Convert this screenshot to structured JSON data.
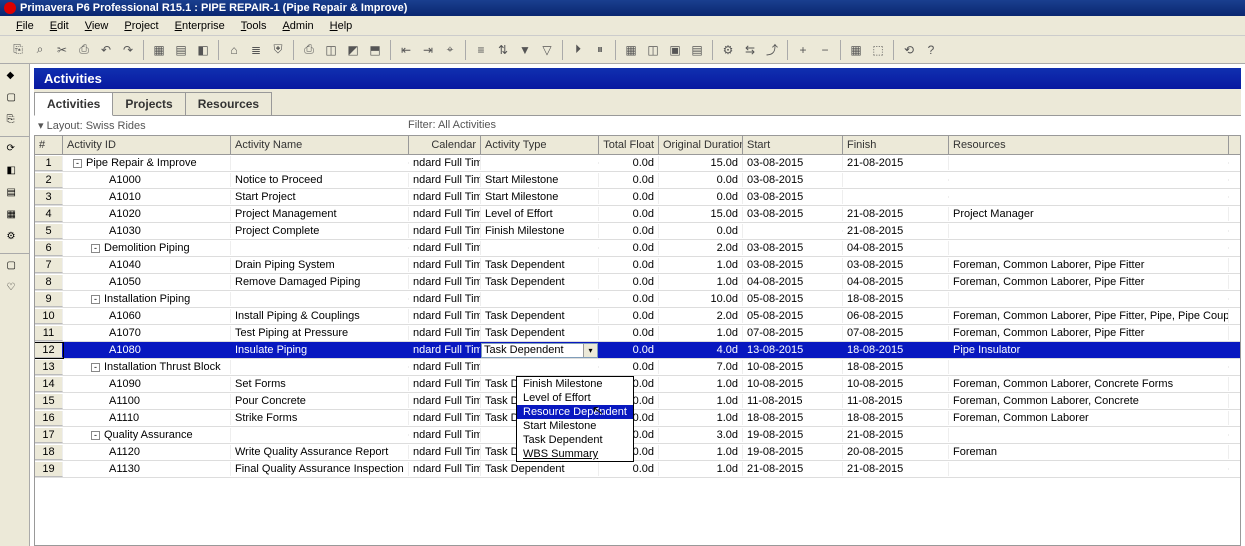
{
  "window": {
    "title": "Primavera P6 Professional R15.1 : PIPE REPAIR-1 (Pipe Repair & Improve)"
  },
  "menu": [
    "File",
    "Edit",
    "View",
    "Project",
    "Enterprise",
    "Tools",
    "Admin",
    "Help"
  ],
  "section_title": "Activities",
  "tabs": [
    {
      "label": "Activities",
      "active": true
    },
    {
      "label": "Projects",
      "active": false
    },
    {
      "label": "Resources",
      "active": false
    }
  ],
  "layout_label": "Layout: Swiss Rides",
  "filter_label": "Filter: All Activities",
  "columns": [
    {
      "key": "rownum",
      "label": "#",
      "w": "c-rownum"
    },
    {
      "key": "id",
      "label": "Activity ID",
      "w": "c-id"
    },
    {
      "key": "name",
      "label": "Activity Name",
      "w": "c-name"
    },
    {
      "key": "cal",
      "label": "Calendar",
      "w": "c-cal"
    },
    {
      "key": "type",
      "label": "Activity Type",
      "w": "c-type"
    },
    {
      "key": "float",
      "label": "Total Float",
      "w": "c-float"
    },
    {
      "key": "dur",
      "label": "Original Duration",
      "w": "c-dur"
    },
    {
      "key": "start",
      "label": "Start",
      "w": "c-start"
    },
    {
      "key": "finish",
      "label": "Finish",
      "w": "c-finish"
    },
    {
      "key": "res",
      "label": "Resources",
      "w": "c-res"
    }
  ],
  "rows": [
    {
      "n": 1,
      "indent": 0,
      "summary": true,
      "exp": "-",
      "id": "Pipe Repair & Improve",
      "name": "",
      "cal": "ndard Full Time",
      "type": "",
      "float": "0.0d",
      "dur": "15.0d",
      "start": "03-08-2015",
      "finish": "21-08-2015",
      "res": ""
    },
    {
      "n": 2,
      "indent": 2,
      "id": "A1000",
      "name": "Notice to Proceed",
      "cal": "ndard Full Time",
      "type": "Start Milestone",
      "float": "0.0d",
      "dur": "0.0d",
      "start": "03-08-2015",
      "finish": "",
      "res": ""
    },
    {
      "n": 3,
      "indent": 2,
      "id": "A1010",
      "name": "Start Project",
      "cal": "ndard Full Time",
      "type": "Start Milestone",
      "float": "0.0d",
      "dur": "0.0d",
      "start": "03-08-2015",
      "finish": "",
      "res": ""
    },
    {
      "n": 4,
      "indent": 2,
      "id": "A1020",
      "name": "Project Management",
      "cal": "ndard Full Time",
      "type": "Level of Effort",
      "float": "0.0d",
      "dur": "15.0d",
      "start": "03-08-2015",
      "finish": "21-08-2015",
      "res": "Project Manager"
    },
    {
      "n": 5,
      "indent": 2,
      "id": "A1030",
      "name": "Project Complete",
      "cal": "ndard Full Time",
      "type": "Finish Milestone",
      "float": "0.0d",
      "dur": "0.0d",
      "start": "",
      "finish": "21-08-2015",
      "res": ""
    },
    {
      "n": 6,
      "indent": 1,
      "summary": true,
      "exp": "-",
      "id": "Demolition Piping",
      "name": "",
      "cal": "ndard Full Time",
      "type": "",
      "float": "0.0d",
      "dur": "2.0d",
      "start": "03-08-2015",
      "finish": "04-08-2015",
      "res": ""
    },
    {
      "n": 7,
      "indent": 2,
      "id": "A1040",
      "name": "Drain Piping System",
      "cal": "ndard Full Time",
      "type": "Task Dependent",
      "float": "0.0d",
      "dur": "1.0d",
      "start": "03-08-2015",
      "finish": "03-08-2015",
      "res": "Foreman, Common Laborer, Pipe Fitter"
    },
    {
      "n": 8,
      "indent": 2,
      "id": "A1050",
      "name": "Remove Damaged Piping",
      "cal": "ndard Full Time",
      "type": "Task Dependent",
      "float": "0.0d",
      "dur": "1.0d",
      "start": "04-08-2015",
      "finish": "04-08-2015",
      "res": "Foreman, Common Laborer, Pipe Fitter"
    },
    {
      "n": 9,
      "indent": 1,
      "summary": true,
      "exp": "-",
      "id": "Installation Piping",
      "name": "",
      "cal": "ndard Full Time",
      "type": "",
      "float": "0.0d",
      "dur": "10.0d",
      "start": "05-08-2015",
      "finish": "18-08-2015",
      "res": ""
    },
    {
      "n": 10,
      "indent": 2,
      "id": "A1060",
      "name": "Install Piping & Couplings",
      "cal": "ndard Full Time",
      "type": "Task Dependent",
      "float": "0.0d",
      "dur": "2.0d",
      "start": "05-08-2015",
      "finish": "06-08-2015",
      "res": "Foreman, Common Laborer, Pipe Fitter, Pipe, Pipe Coupling"
    },
    {
      "n": 11,
      "indent": 2,
      "id": "A1070",
      "name": "Test Piping at Pressure",
      "cal": "ndard Full Time",
      "type": "Task Dependent",
      "float": "0.0d",
      "dur": "1.0d",
      "start": "07-08-2015",
      "finish": "07-08-2015",
      "res": "Foreman, Common Laborer, Pipe Fitter"
    },
    {
      "n": 12,
      "indent": 2,
      "selected": true,
      "id": "A1080",
      "name": "Insulate Piping",
      "cal": "ndard Full Time",
      "type": "Task Dependent",
      "float": "0.0d",
      "dur": "4.0d",
      "start": "13-08-2015",
      "finish": "18-08-2015",
      "res": "Pipe Insulator"
    },
    {
      "n": 13,
      "indent": 1,
      "summary": true,
      "exp": "-",
      "id": "Installation Thrust Block",
      "name": "",
      "cal": "ndard Full Time",
      "type": "",
      "float": "0.0d",
      "dur": "7.0d",
      "start": "10-08-2015",
      "finish": "18-08-2015",
      "res": ""
    },
    {
      "n": 14,
      "indent": 2,
      "id": "A1090",
      "name": "Set Forms",
      "cal": "ndard Full Time",
      "type": "Task Dependent",
      "float": "0.0d",
      "dur": "1.0d",
      "start": "10-08-2015",
      "finish": "10-08-2015",
      "res": "Foreman, Common Laborer, Concrete Forms"
    },
    {
      "n": 15,
      "indent": 2,
      "id": "A1100",
      "name": "Pour Concrete",
      "cal": "ndard Full Time",
      "type": "Task Dependent",
      "float": "0.0d",
      "dur": "1.0d",
      "start": "11-08-2015",
      "finish": "11-08-2015",
      "res": "Foreman, Common Laborer, Concrete"
    },
    {
      "n": 16,
      "indent": 2,
      "id": "A1110",
      "name": "Strike Forms",
      "cal": "ndard Full Time",
      "type": "Task Dependent",
      "float": "0.0d",
      "dur": "1.0d",
      "start": "18-08-2015",
      "finish": "18-08-2015",
      "res": "Foreman, Common Laborer"
    },
    {
      "n": 17,
      "indent": 1,
      "summary": true,
      "exp": "-",
      "id": "Quality Assurance",
      "name": "",
      "cal": "ndard Full Time",
      "type": "",
      "float": "0.0d",
      "dur": "3.0d",
      "start": "19-08-2015",
      "finish": "21-08-2015",
      "res": ""
    },
    {
      "n": 18,
      "indent": 2,
      "id": "A1120",
      "name": "Write Quality Assurance Report",
      "cal": "ndard Full Time",
      "type": "Task Dependent",
      "float": "0.0d",
      "dur": "1.0d",
      "start": "19-08-2015",
      "finish": "20-08-2015",
      "res": "Foreman"
    },
    {
      "n": 19,
      "indent": 2,
      "id": "A1130",
      "name": "Final Quality Assurance Inspection",
      "cal": "ndard Full Time",
      "type": "Task Dependent",
      "float": "0.0d",
      "dur": "1.0d",
      "start": "21-08-2015",
      "finish": "21-08-2015",
      "res": ""
    }
  ],
  "dropdown_options": [
    {
      "label": "Finish Milestone",
      "hl": false
    },
    {
      "label": "Level of Effort",
      "hl": false
    },
    {
      "label": "Resource Dependent",
      "hl": true
    },
    {
      "label": "Start Milestone",
      "hl": false
    },
    {
      "label": "Task Dependent",
      "hl": false
    },
    {
      "label": "WBS Summary",
      "hl": false,
      "wbs": true
    }
  ],
  "toolbar_icons": [
    "⎘",
    "⌕",
    "✂",
    "⎙",
    "↶",
    "↷",
    "|",
    "▦",
    "▤",
    "◧",
    "|",
    "⌂",
    "≣",
    "⛨",
    "|",
    "⎙",
    "◫",
    "◩",
    "⬒",
    "|",
    "⇤",
    "⇥",
    "⌖",
    "|",
    "≡",
    "⇅",
    "▼",
    "▽",
    "|",
    "⏵",
    "⏸",
    "|",
    "▦",
    "◫",
    "▣",
    "▤",
    "|",
    "⚙",
    "⇆",
    "⤴",
    "|",
    "+",
    "−",
    "|",
    "▦",
    "⬚",
    "|",
    "⟲",
    "?"
  ],
  "side_icons": [
    "◆",
    "▢",
    "⎘",
    "—",
    "⟳",
    "◧",
    "▤",
    "▦",
    "⚙",
    "—",
    "▢",
    "♡"
  ]
}
